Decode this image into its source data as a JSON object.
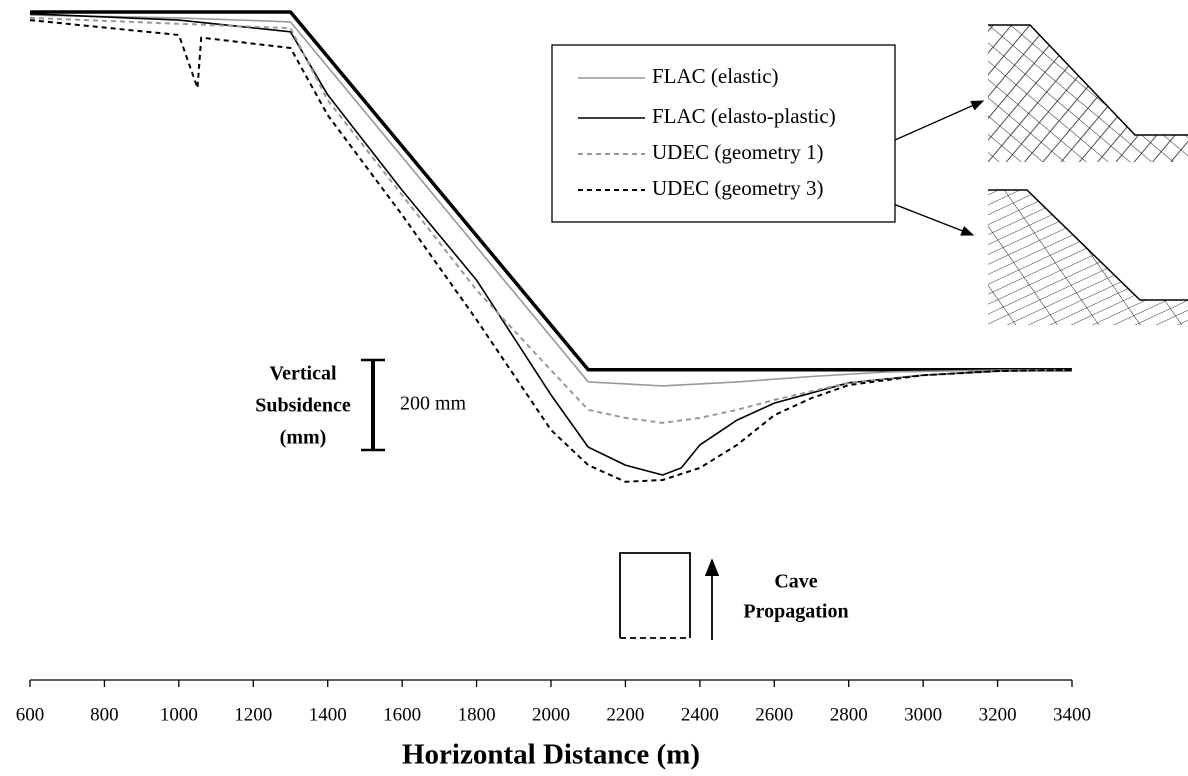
{
  "chart_data": {
    "type": "line",
    "xlabel": "Horizontal Distance (m)",
    "xlim": [
      600,
      3400
    ],
    "xticks": [
      600,
      800,
      1000,
      1200,
      1400,
      1600,
      1800,
      2000,
      2200,
      2400,
      2600,
      2800,
      3000,
      3200,
      3400
    ],
    "ylim": [
      -1480,
      20
    ],
    "series": [
      {
        "color": "#000000",
        "style": "solid",
        "width": 3.5,
        "x": [
          600,
          1300,
          2100,
          3400
        ],
        "values": [
          0,
          0,
          -795,
          -795
        ]
      },
      {
        "name": "FLAC (elastic)",
        "color": "#999999",
        "style": "solid",
        "width": 1.6,
        "x": [
          600,
          1000,
          1300,
          2100,
          2300,
          2500,
          2700,
          2900,
          3200,
          3400
        ],
        "values": [
          -7,
          -13,
          -22,
          -822,
          -831,
          -822,
          -810,
          -800,
          -796,
          -795
        ]
      },
      {
        "name": "FLAC (elasto-plastic)",
        "color": "#000000",
        "style": "solid",
        "width": 1.6,
        "x": [
          600,
          1000,
          1300,
          1400,
          1600,
          1800,
          2000,
          2100,
          2200,
          2300,
          2350,
          2400,
          2500,
          2600,
          2800,
          3000,
          3200,
          3400
        ],
        "values": [
          -4,
          -18,
          -44,
          -184,
          -396,
          -596,
          -851,
          -967,
          -1007,
          -1029,
          -1013,
          -962,
          -907,
          -869,
          -824,
          -807,
          -798,
          -795
        ]
      },
      {
        "name": "UDEC (geometry 1)",
        "color": "#999999",
        "style": "dashed",
        "width": 2,
        "x": [
          600,
          1300,
          1400,
          1600,
          1800,
          2000,
          2100,
          2200,
          2300,
          2400,
          2500,
          2600,
          2800,
          3000,
          3200,
          3400
        ],
        "values": [
          -13,
          -36,
          -196,
          -407,
          -618,
          -796,
          -884,
          -902,
          -913,
          -902,
          -884,
          -862,
          -824,
          -807,
          -798,
          -795
        ]
      },
      {
        "name": "UDEC (geometry 3)",
        "color": "#000000",
        "style": "dashed",
        "width": 2,
        "x": [
          600,
          1000,
          1050,
          1060,
          1300,
          1400,
          1600,
          1800,
          2000,
          2100,
          2200,
          2300,
          2400,
          2500,
          2600,
          2700,
          2800,
          3000,
          3200,
          3400
        ],
        "values": [
          -18,
          -51,
          -169,
          -57,
          -80,
          -229,
          -451,
          -684,
          -929,
          -1007,
          -1044,
          -1040,
          -1013,
          -962,
          -896,
          -858,
          -829,
          -807,
          -798,
          -795
        ]
      }
    ],
    "scale_bar": {
      "value": 200,
      "label": "200 mm"
    },
    "annotations": {
      "subsidence": [
        "Vertical",
        "Subsidence",
        "(mm)"
      ],
      "cave": [
        "Cave",
        "Propagation"
      ]
    }
  }
}
